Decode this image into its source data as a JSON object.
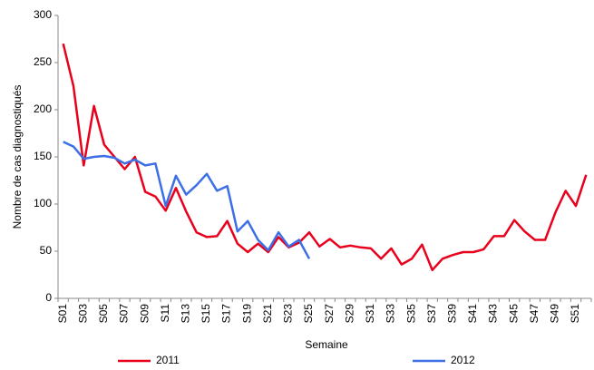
{
  "chart_data": {
    "type": "line",
    "x_label": "Semaine",
    "y_label": "Nombre de cas diagnostiqués",
    "categories": [
      "S01",
      null,
      "S03",
      null,
      "S05",
      null,
      "S07",
      null,
      "S09",
      null,
      "S11",
      null,
      "S13",
      null,
      "S15",
      null,
      "S17",
      null,
      "S19",
      null,
      "S21",
      null,
      "S23",
      null,
      "S25",
      null,
      "S27",
      null,
      "S29",
      null,
      "S31",
      null,
      "S33",
      null,
      "S35",
      null,
      "S37",
      null,
      "S39",
      null,
      "S41",
      null,
      "S43",
      null,
      "S45",
      null,
      "S47",
      null,
      "S49",
      null,
      "S51",
      null
    ],
    "series": [
      {
        "name": "2011",
        "color": "#e8001c",
        "values": [
          270,
          225,
          141,
          204,
          163,
          150,
          137,
          150,
          113,
          108,
          93,
          117,
          92,
          70,
          65,
          66,
          82,
          58,
          49,
          58,
          49,
          65,
          54,
          59,
          70,
          55,
          63,
          54,
          56,
          54,
          53,
          42,
          53,
          36,
          42,
          57,
          30,
          42,
          46,
          49,
          49,
          52,
          66,
          66,
          83,
          71,
          62,
          62,
          91,
          114,
          98,
          131
        ]
      },
      {
        "name": "2012",
        "color": "#3d6fe6",
        "values": [
          166,
          161,
          148,
          150,
          151,
          149,
          143,
          147,
          141,
          143,
          98,
          130,
          110,
          120,
          132,
          114,
          119,
          71,
          82,
          62,
          51,
          70,
          55,
          62,
          42,
          null,
          null,
          null,
          null,
          null,
          null,
          null,
          null,
          null,
          null,
          null,
          null,
          null,
          null,
          null,
          null,
          null,
          null,
          null,
          null,
          null,
          null,
          null,
          null,
          null,
          null,
          null
        ]
      }
    ],
    "ylim": [
      0,
      300
    ],
    "yticks": [
      0,
      50,
      100,
      150,
      200,
      250,
      300
    ],
    "grid": false,
    "legend": "bottom"
  }
}
